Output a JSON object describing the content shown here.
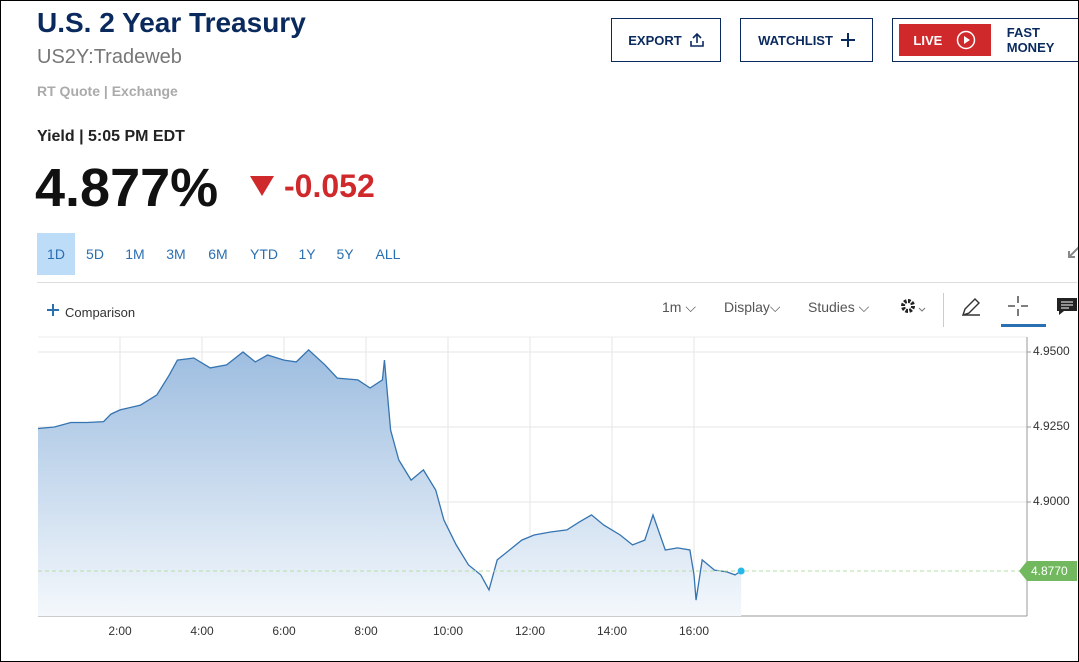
{
  "header": {
    "title": "U.S. 2 Year Treasury",
    "symbol": "US2Y:Tradeweb",
    "source": "RT Quote | Exchange",
    "quote_label": "Yield | 5:05 PM EDT",
    "price": "4.877%",
    "change": "-0.052",
    "buttons": [
      "EXPORT",
      "WATCHLIST"
    ],
    "live": "LIVE",
    "show": "FAST MONEY"
  },
  "ranges": [
    "1D",
    "5D",
    "1M",
    "3M",
    "6M",
    "YTD",
    "1Y",
    "5Y",
    "ALL"
  ],
  "toolbar": {
    "comparison": "Comparison",
    "interval": "1m",
    "display": "Display",
    "studies": "Studies"
  },
  "chart_data": {
    "type": "area",
    "color": "#3574b0",
    "x": [
      0,
      0.4,
      0.8,
      1.2,
      1.6,
      1.78,
      2.0,
      2.5,
      2.9,
      3.2,
      3.4,
      3.8,
      4.2,
      4.6,
      5.0,
      5.3,
      5.6,
      6.0,
      6.3,
      6.6,
      7.0,
      7.3,
      7.8,
      8.1,
      8.4,
      8.45,
      8.6,
      8.8,
      9.1,
      9.4,
      9.7,
      9.9,
      10.2,
      10.5,
      10.8,
      11.0,
      11.2,
      11.5,
      11.8,
      12.1,
      12.5,
      12.9,
      13.2,
      13.5,
      13.8,
      14.2,
      14.5,
      14.8,
      15.0,
      15.3,
      15.6,
      15.9,
      16.0,
      16.05,
      16.2,
      16.5,
      16.8,
      17.0,
      17.15
    ],
    "series": [
      {
        "name": "US2Y",
        "values": [
          4.9245,
          4.925,
          4.9265,
          4.9265,
          4.9268,
          4.9293,
          4.9307,
          4.9323,
          4.9357,
          4.9423,
          4.9473,
          4.948,
          4.9447,
          4.9457,
          4.95,
          4.9467,
          4.949,
          4.9473,
          4.9467,
          4.9507,
          4.9457,
          4.9413,
          4.9407,
          4.938,
          4.9407,
          4.9473,
          4.924,
          4.914,
          4.9073,
          4.9107,
          4.904,
          4.894,
          4.8857,
          4.879,
          4.8757,
          4.8707,
          4.8807,
          4.884,
          4.8873,
          4.889,
          4.89,
          4.8907,
          4.8933,
          4.8957,
          4.8923,
          4.889,
          4.8857,
          4.8873,
          4.8957,
          4.884,
          4.8847,
          4.884,
          4.8757,
          4.8673,
          4.8807,
          4.8773,
          4.8767,
          4.8757,
          4.877
        ]
      }
    ],
    "last": {
      "value": 4.877,
      "label": "4.8770"
    },
    "xlim": [
      0,
      24
    ],
    "ylim": [
      4.862,
      4.957
    ],
    "xticks": [
      {
        "value": 2,
        "label": "2:00"
      },
      {
        "value": 4,
        "label": "4:00"
      },
      {
        "value": 6,
        "label": "6:00"
      },
      {
        "value": 8,
        "label": "8:00"
      },
      {
        "value": 10,
        "label": "10:00"
      },
      {
        "value": 12,
        "label": "12:00"
      },
      {
        "value": 14,
        "label": "14:00"
      },
      {
        "value": 16,
        "label": "16:00"
      }
    ],
    "yticks": [
      {
        "value": 4.9,
        "label": "4.9000"
      },
      {
        "value": 4.925,
        "label": "4.9250"
      },
      {
        "value": 4.95,
        "label": "4.9500"
      }
    ],
    "grid": true
  }
}
